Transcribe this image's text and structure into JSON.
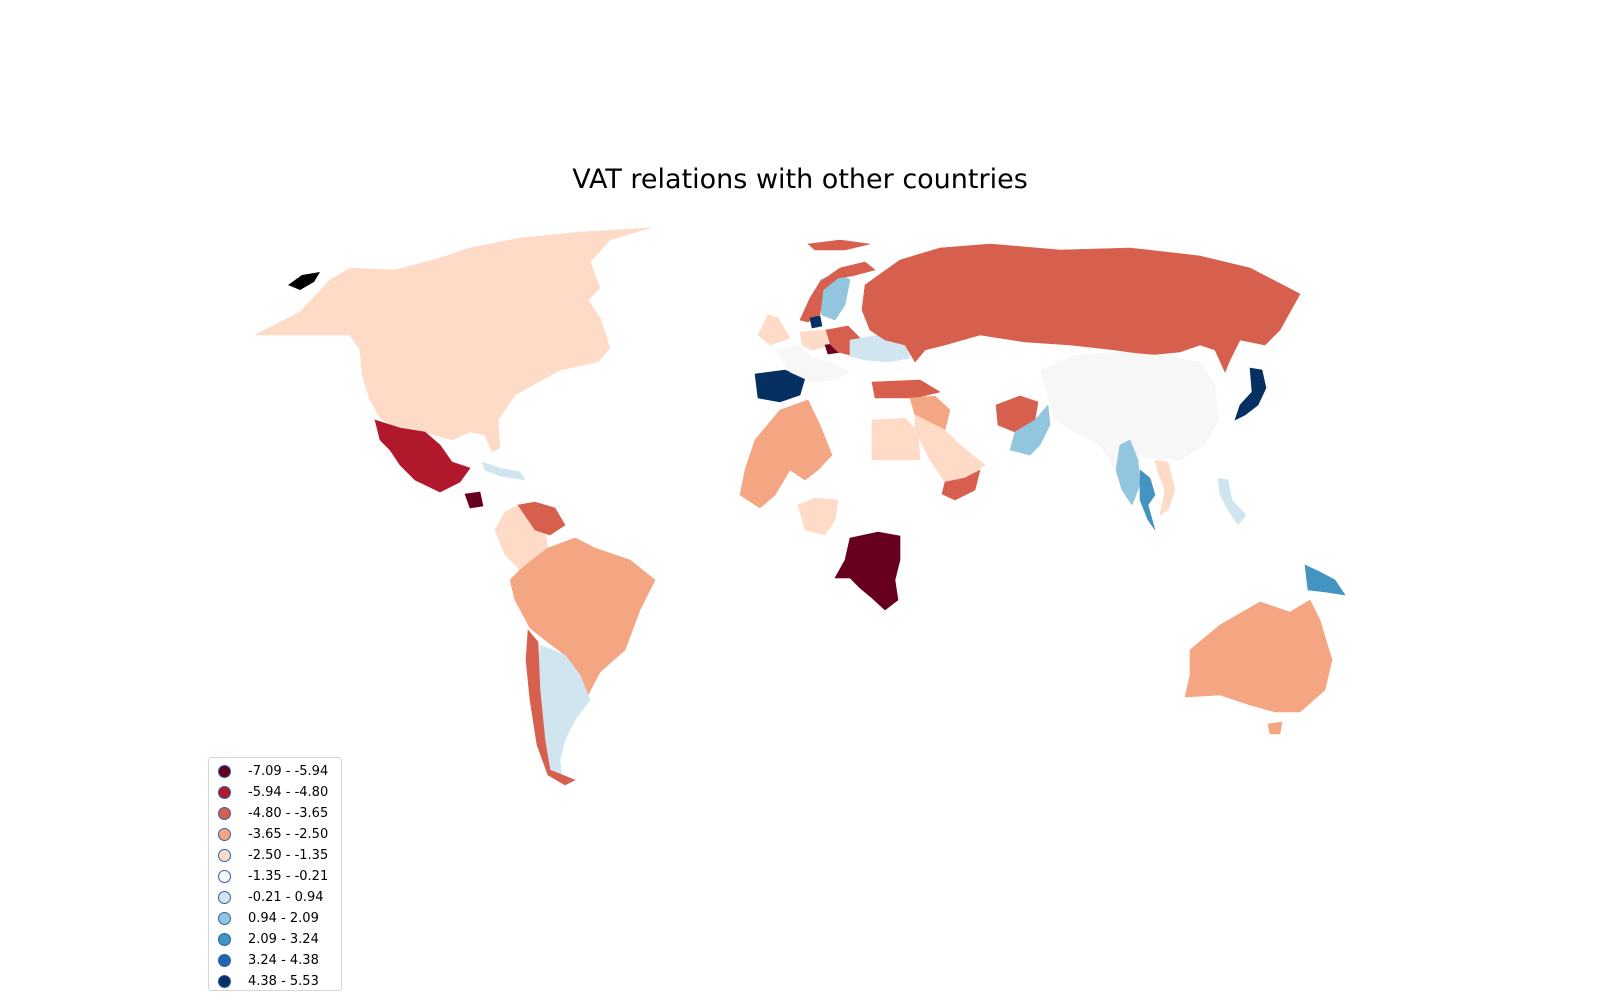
{
  "title": "VAT relations with other countries",
  "palette": {
    "b1": "#67001f",
    "b2": "#b2182b",
    "b3": "#d6604d",
    "b4": "#f4a582",
    "b5": "#fddbc7",
    "b6": "#f7f7f7",
    "b7": "#d1e5f0",
    "b8": "#92c5de",
    "b9": "#4393c3",
    "b10": "#2166ac",
    "b11": "#053061",
    "no_data": "#ffffff",
    "legend_edge": "#2d62a8"
  },
  "legend": {
    "items": [
      {
        "label": "-7.09 - -5.94",
        "color": "#67001f"
      },
      {
        "label": "-5.94 - -4.80",
        "color": "#b2182b"
      },
      {
        "label": "-4.80 - -3.65",
        "color": "#d6604d"
      },
      {
        "label": "-3.65 - -2.50",
        "color": "#f4a582"
      },
      {
        "label": "-2.50 - -1.35",
        "color": "#fddbc7"
      },
      {
        "label": "-1.35 - -0.21",
        "color": "#f7f7f7"
      },
      {
        "label": "-0.21 - 0.94",
        "color": "#d1e5f0"
      },
      {
        "label": "0.94 - 2.09",
        "color": "#92c5de"
      },
      {
        "label": "2.09 - 3.24",
        "color": "#4393c3"
      },
      {
        "label": "3.24 - 4.38",
        "color": "#2166ac"
      },
      {
        "label": "4.38 - 5.53",
        "color": "#053061"
      }
    ]
  },
  "regions": {
    "north_america": {
      "bin": 5
    },
    "greenland": {
      "bin": 0
    },
    "mexico": {
      "bin": 2
    },
    "guatemala": {
      "bin": 1
    },
    "caribbean": {
      "bin": 7
    },
    "colombia_ecuador_peru": {
      "bin": 5
    },
    "venezuela": {
      "bin": 3
    },
    "brazil_bolivia": {
      "bin": 4
    },
    "argentina": {
      "bin": 7
    },
    "chile": {
      "bin": 3
    },
    "iceland_svalbard": {
      "bin": 3
    },
    "uk_ireland": {
      "bin": 5
    },
    "spain_portugal": {
      "bin": 11
    },
    "west_europe": {
      "bin": 6
    },
    "germany": {
      "bin": 5
    },
    "czechia": {
      "bin": 1
    },
    "poland_belarus": {
      "bin": 3
    },
    "ukraine_balkans": {
      "bin": 7
    },
    "sweden": {
      "bin": 8
    },
    "norway": {
      "bin": 3
    },
    "denmark": {
      "bin": 11
    },
    "russia": {
      "bin": 3
    },
    "turkey": {
      "bin": 3
    },
    "iraq_syria": {
      "bin": 4
    },
    "saudi_arabia": {
      "bin": 5
    },
    "yemen": {
      "bin": 3
    },
    "egypt": {
      "bin": 5
    },
    "algeria_mali_niger": {
      "bin": 4
    },
    "nigeria": {
      "bin": 5
    },
    "dr_congo": {
      "bin": 1
    },
    "afghanistan": {
      "bin": 3
    },
    "pakistan": {
      "bin": 8
    },
    "china_mongolia_india": {
      "bin": 6
    },
    "myanmar": {
      "bin": 8
    },
    "thailand": {
      "bin": 9
    },
    "vietnam": {
      "bin": 5
    },
    "philippines": {
      "bin": 7
    },
    "japan": {
      "bin": 11
    },
    "papua_new_guinea": {
      "bin": 9
    },
    "australia": {
      "bin": 4
    }
  }
}
